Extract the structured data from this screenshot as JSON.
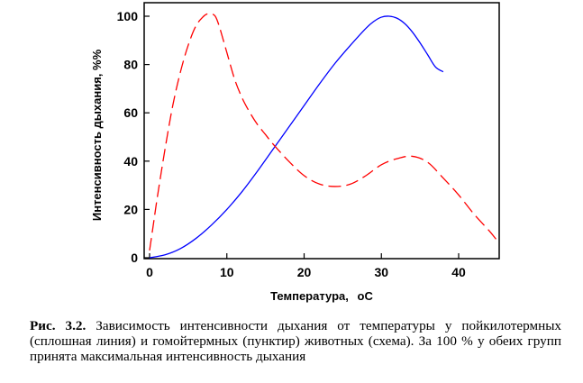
{
  "chart_data": {
    "type": "line",
    "xlabel": "Температура,",
    "xunit": "оС",
    "ylabel": "Интенсивность дыхания, %%",
    "xlim": [
      0,
      45
    ],
    "ylim": [
      0,
      100
    ],
    "xticks": [
      "0",
      "10",
      "20",
      "30",
      "40"
    ],
    "yticks": [
      "0",
      "20",
      "40",
      "60",
      "80",
      "100"
    ],
    "grid": false,
    "series": [
      {
        "style": "solid",
        "color": "#0000ff",
        "x": [
          0,
          2,
          4,
          6,
          8,
          10,
          12,
          14,
          16,
          18,
          20,
          22,
          24,
          26,
          28,
          29,
          30,
          31,
          32,
          33,
          34,
          35,
          36,
          37,
          38
        ],
        "y": [
          0,
          1.2,
          3.8,
          8,
          13.5,
          20,
          27.5,
          36,
          45,
          54,
          63,
          72,
          80.5,
          88,
          95,
          97.8,
          99.6,
          100,
          99.2,
          97,
          93.5,
          89,
          84,
          79,
          77
        ]
      },
      {
        "style": "dashed",
        "color": "#ff0000",
        "x": [
          0,
          0.5,
          1,
          2,
          3,
          4,
          5,
          6,
          7,
          7.5,
          8,
          8.5,
          9,
          10,
          11,
          12,
          13,
          14,
          15,
          16,
          18,
          20,
          22,
          24,
          26,
          28,
          30,
          32,
          34,
          36,
          38,
          40,
          42,
          44,
          45
        ],
        "y": [
          3,
          14,
          25,
          45,
          63,
          77,
          88,
          96,
          100,
          101,
          101,
          100,
          96,
          85,
          74,
          66,
          60,
          55,
          51,
          47,
          40,
          34,
          30.5,
          29.5,
          30.5,
          34,
          38.5,
          41,
          42,
          39.5,
          33,
          26,
          18,
          11,
          7
        ]
      }
    ]
  },
  "caption": {
    "label": "Рис.   3.2.",
    "text": "Зависимость интенсивности дыхания от температуры у пойкилотермных (сплошная линия) и гомойтермных (пунктир) животных (схема). За 100 % у обеих групп принята максимальная интенсивность дыхания"
  }
}
